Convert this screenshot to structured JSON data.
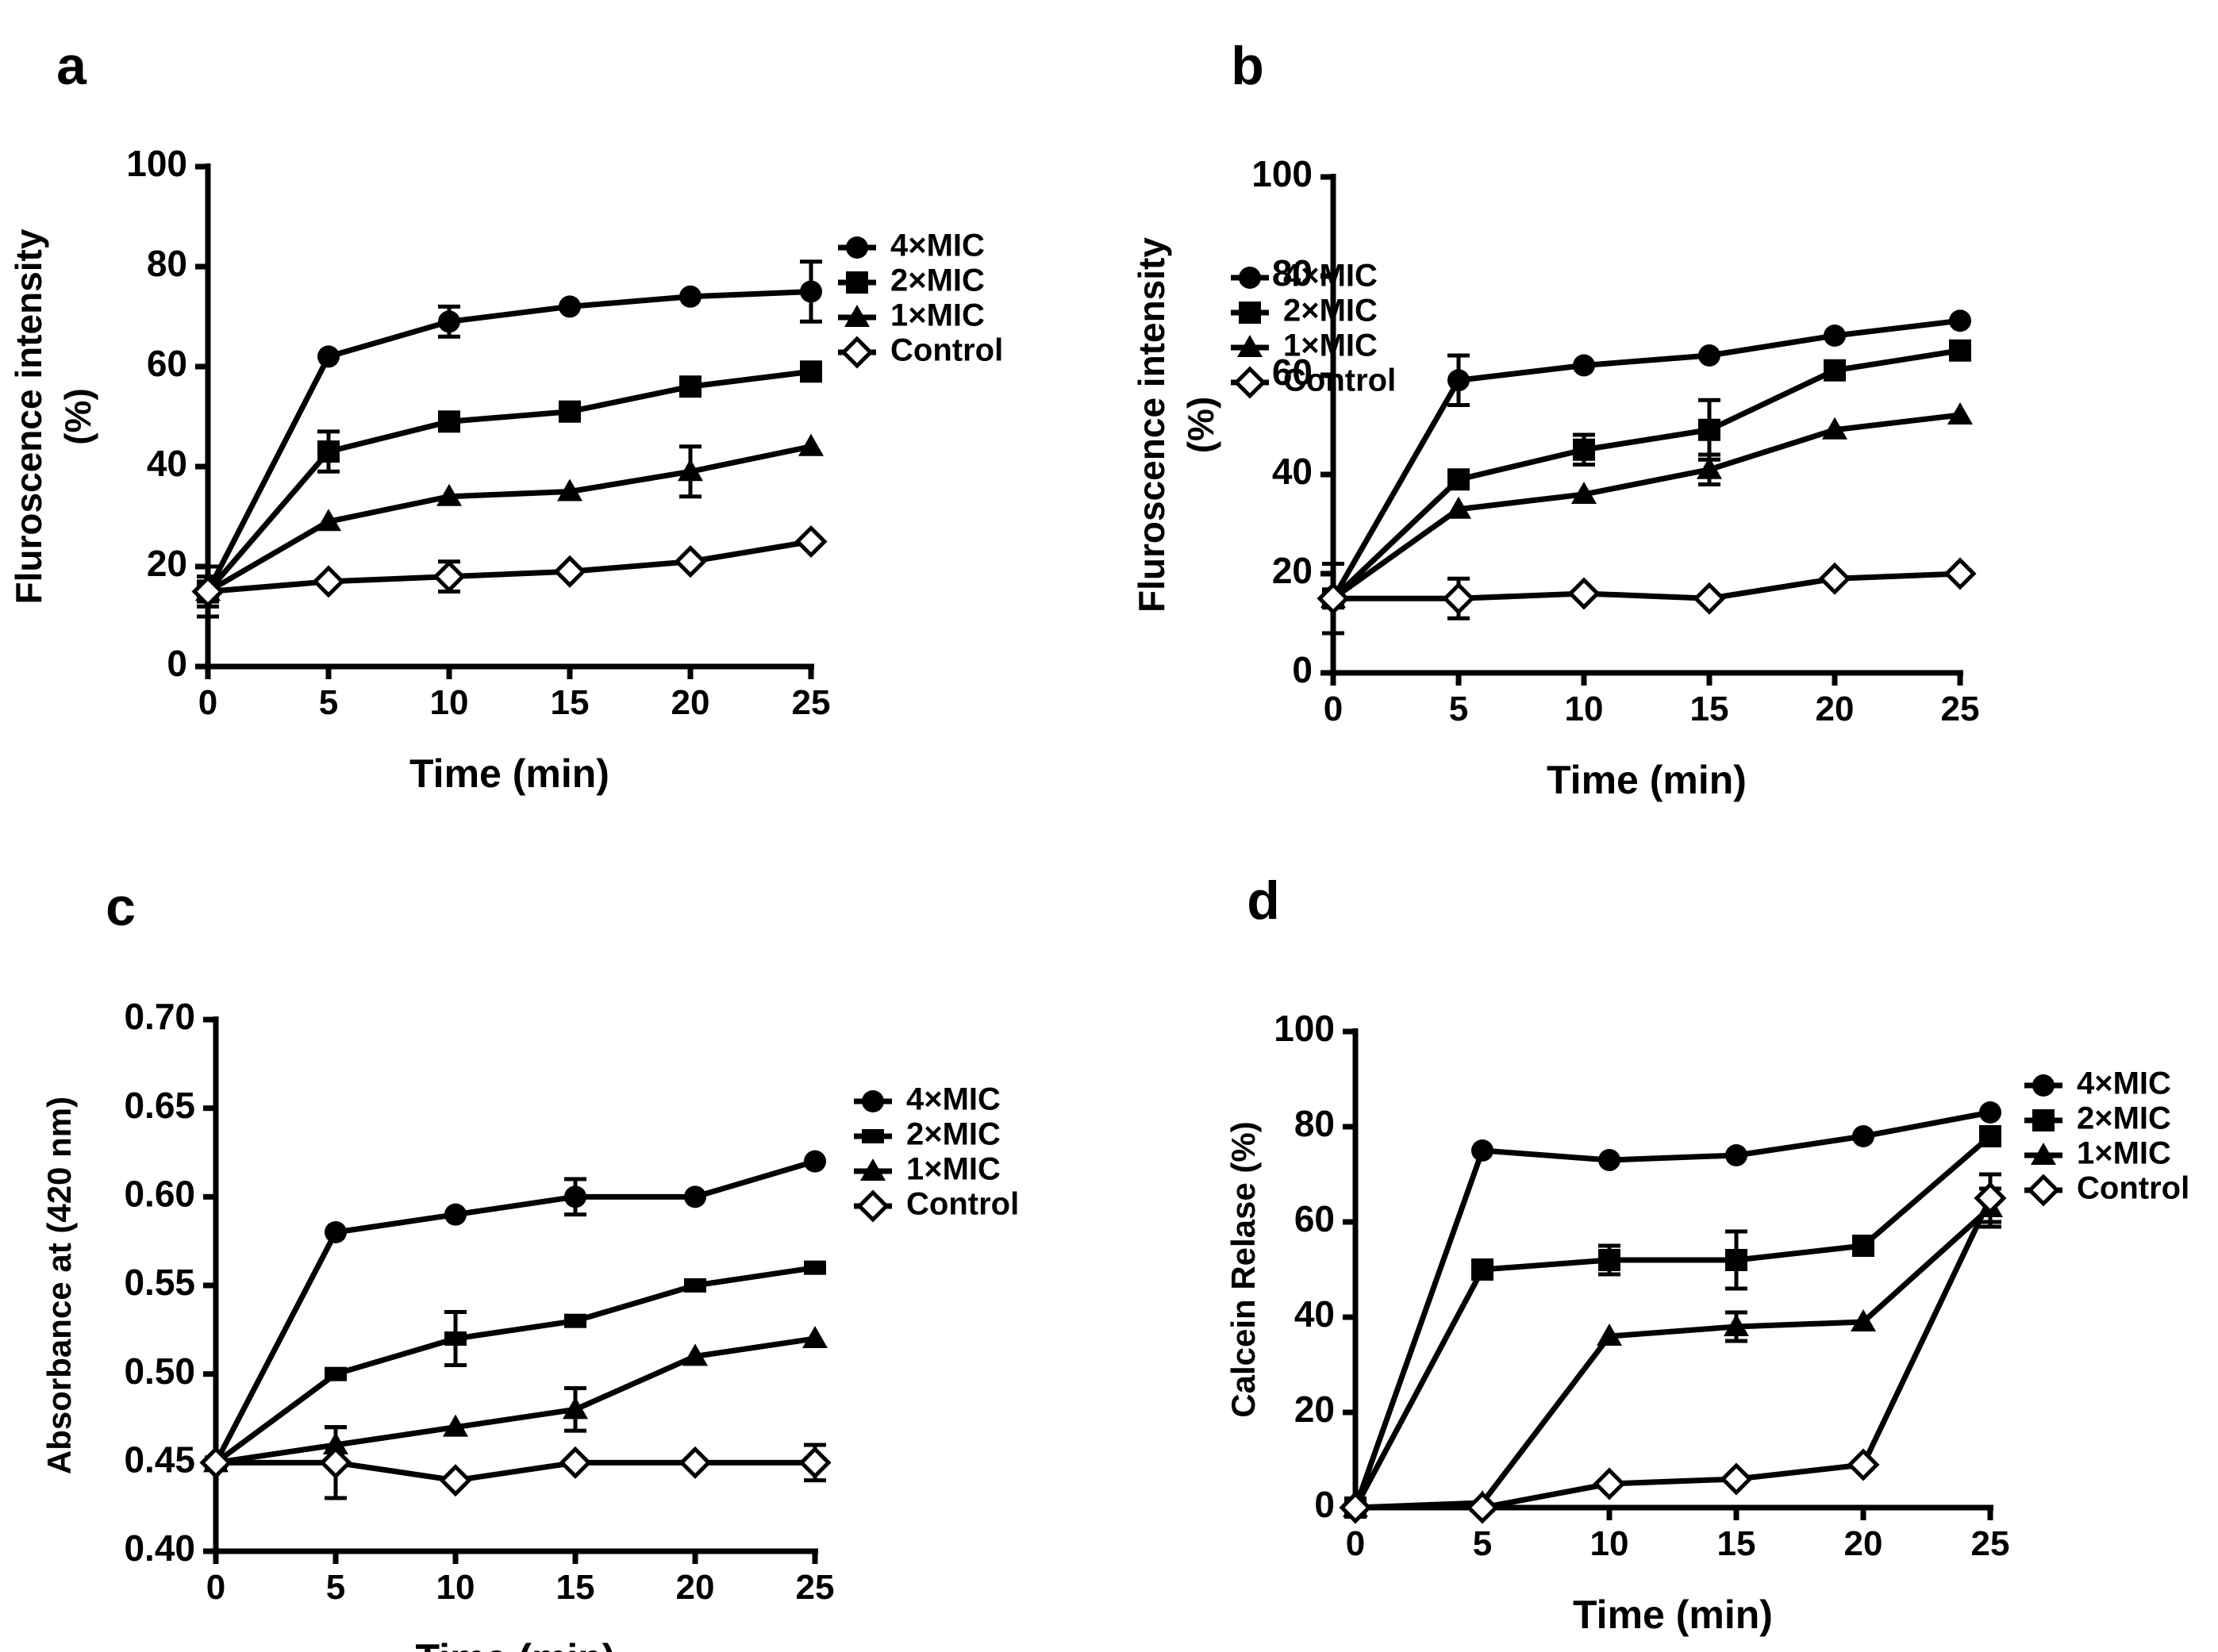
{
  "chart_data": [
    {
      "panel": "a",
      "type": "line",
      "title": "",
      "xlabel": "Time (min)",
      "ylabel": "Fluroscence intensity (%)",
      "ylabel_lines": [
        "Fluroscence intensity",
        "(%)"
      ],
      "xlim": [
        0,
        25
      ],
      "ylim": [
        0,
        100
      ],
      "xticks": [
        0,
        5,
        10,
        15,
        20,
        25
      ],
      "xtick_labels": [
        "0",
        "5",
        "10",
        "15",
        "20",
        "25"
      ],
      "yticks": [
        0,
        20,
        40,
        60,
        80,
        100
      ],
      "ytick_labels": [
        "0",
        "20",
        "40",
        "60",
        "80",
        "100"
      ],
      "grid": false,
      "legend_position": "right",
      "x": [
        0,
        5,
        10,
        15,
        20,
        25
      ],
      "series": [
        {
          "name": "4×MIC",
          "marker": "circle",
          "values": [
            15,
            62,
            69,
            72,
            74,
            75
          ],
          "errors": [
            2,
            0,
            3,
            0,
            0,
            6
          ]
        },
        {
          "name": "2×MIC",
          "marker": "square",
          "values": [
            15,
            43,
            49,
            51,
            56,
            59
          ],
          "errors": [
            3,
            4,
            0,
            0,
            0,
            0
          ]
        },
        {
          "name": "1×MIC",
          "marker": "triangle",
          "values": [
            15,
            29,
            34,
            35,
            39,
            44
          ],
          "errors": [
            5,
            0,
            0,
            0,
            5,
            0
          ]
        },
        {
          "name": "Control",
          "marker": "diamond-open",
          "values": [
            15,
            17,
            18,
            19,
            21,
            25
          ],
          "errors": [
            0,
            0,
            3,
            0,
            0,
            0
          ]
        }
      ]
    },
    {
      "panel": "b",
      "type": "line",
      "title": "",
      "xlabel": "Time (min)",
      "ylabel": "Fluroscence intensity (%)",
      "ylabel_lines": [
        "Fluroscence intensity",
        "(%)"
      ],
      "xlim": [
        0,
        25
      ],
      "ylim": [
        0,
        100
      ],
      "xticks": [
        0,
        5,
        10,
        15,
        20,
        25
      ],
      "xtick_labels": [
        "0",
        "5",
        "10",
        "15",
        "20",
        "25"
      ],
      "yticks": [
        0,
        20,
        40,
        60,
        80,
        100
      ],
      "ytick_labels": [
        "0",
        "20",
        "40",
        "60",
        "80",
        "100"
      ],
      "grid": false,
      "legend_position": "right",
      "x": [
        0,
        5,
        10,
        15,
        20,
        25
      ],
      "series": [
        {
          "name": "4×MIC",
          "marker": "circle",
          "values": [
            15,
            59,
            62,
            64,
            68,
            71
          ],
          "errors": [
            0,
            5,
            0,
            0,
            0,
            0
          ]
        },
        {
          "name": "2×MIC",
          "marker": "square",
          "values": [
            15,
            39,
            45,
            49,
            61,
            65
          ],
          "errors": [
            0,
            0,
            3,
            6,
            0,
            0
          ]
        },
        {
          "name": "1×MIC",
          "marker": "triangle",
          "values": [
            15,
            33,
            36,
            41,
            49,
            52
          ],
          "errors": [
            0,
            0,
            0,
            3,
            0,
            0
          ]
        },
        {
          "name": "Control",
          "marker": "diamond-open",
          "values": [
            15,
            15,
            16,
            15,
            19,
            20
          ],
          "errors": [
            7,
            4,
            0,
            0,
            0,
            0
          ]
        }
      ]
    },
    {
      "panel": "c",
      "type": "line",
      "title": "",
      "xlabel": "Time (min)",
      "ylabel": "Absorbance at (420 nm)",
      "ylabel_lines": [
        "Absorbance at (420 nm)"
      ],
      "xlim": [
        0,
        25
      ],
      "ylim": [
        0.4,
        0.7
      ],
      "xticks": [
        0,
        5,
        10,
        15,
        20,
        25
      ],
      "xtick_labels": [
        "0",
        "5",
        "10",
        "15",
        "20",
        "25"
      ],
      "yticks": [
        0.4,
        0.45,
        0.5,
        0.55,
        0.6,
        0.65,
        0.7
      ],
      "ytick_labels": [
        "0.40",
        "0.45",
        "0.50",
        "0.55",
        "0.60",
        "0.65",
        "0.70"
      ],
      "grid": false,
      "legend_position": "right",
      "x": [
        0,
        5,
        10,
        15,
        20,
        25
      ],
      "series": [
        {
          "name": "4×MIC",
          "marker": "circle",
          "values": [
            0.45,
            0.58,
            0.59,
            0.6,
            0.6,
            0.62
          ],
          "errors": [
            0,
            0,
            0,
            0.01,
            0,
            0
          ]
        },
        {
          "name": "2×MIC",
          "marker": "dash",
          "values": [
            0.45,
            0.5,
            0.52,
            0.53,
            0.55,
            0.56
          ],
          "errors": [
            0,
            0,
            0.015,
            0,
            0,
            0
          ]
        },
        {
          "name": "1×MIC",
          "marker": "triangle",
          "values": [
            0.45,
            0.46,
            0.47,
            0.48,
            0.51,
            0.52
          ],
          "errors": [
            0,
            0.01,
            0,
            0.012,
            0,
            0
          ]
        },
        {
          "name": "Control",
          "marker": "diamond-open",
          "values": [
            0.45,
            0.45,
            0.44,
            0.45,
            0.45,
            0.45
          ],
          "errors": [
            0,
            0.02,
            0,
            0,
            0,
            0.01
          ]
        }
      ]
    },
    {
      "panel": "d",
      "type": "line",
      "title": "",
      "xlabel": "Time (min)",
      "ylabel": "Calcein Relase (%)",
      "ylabel_lines": [
        "Calcein Relase (%)"
      ],
      "xlim": [
        0,
        25
      ],
      "ylim": [
        0,
        100
      ],
      "xticks": [
        0,
        5,
        10,
        15,
        20,
        25
      ],
      "xtick_labels": [
        "0",
        "5",
        "10",
        "15",
        "20",
        "25"
      ],
      "yticks": [
        0,
        20,
        40,
        60,
        80,
        100
      ],
      "ytick_labels": [
        "0",
        "20",
        "40",
        "60",
        "80",
        "100"
      ],
      "grid": false,
      "legend_position": "right",
      "x": [
        0,
        5,
        10,
        15,
        20,
        25
      ],
      "series": [
        {
          "name": "4×MIC",
          "marker": "circle",
          "values": [
            0,
            75,
            73,
            74,
            78,
            83
          ],
          "errors": [
            0,
            0,
            0,
            0,
            0,
            0
          ]
        },
        {
          "name": "2×MIC",
          "marker": "square",
          "values": [
            0,
            50,
            52,
            52,
            55,
            78
          ],
          "errors": [
            0,
            0,
            3,
            6,
            0,
            0
          ]
        },
        {
          "name": "1×MIC",
          "marker": "triangle",
          "values": [
            0,
            1,
            36,
            38,
            39,
            63
          ],
          "errors": [
            0,
            0,
            0,
            3,
            0,
            4
          ]
        },
        {
          "name": "Control",
          "marker": "diamond-open",
          "values": [
            0,
            0,
            5,
            6,
            9,
            65
          ],
          "errors": [
            0,
            0,
            0,
            0,
            0,
            5
          ]
        }
      ]
    }
  ]
}
